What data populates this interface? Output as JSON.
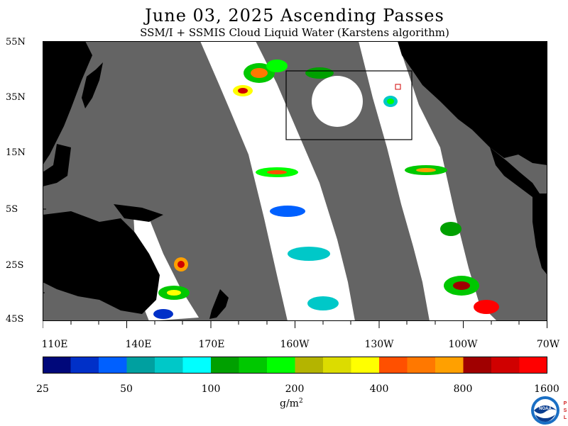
{
  "title": "June 03, 2025  Ascending Passes",
  "subtitle": "SSM/I + SSMIS Cloud Liquid Water (Karstens algorithm)",
  "map": {
    "lat_labels": [
      "55N",
      "35N",
      "15N",
      "5S",
      "25S",
      "45S"
    ],
    "lon_labels": [
      "110E",
      "140E",
      "170E",
      "160W",
      "130W",
      "100W",
      "70W"
    ],
    "colors": {
      "ocean_nodata": "#646464",
      "land": "#000000",
      "clear_sky": "#ffffff"
    }
  },
  "colorbar": {
    "colors": [
      "#00087a",
      "#0030c8",
      "#0060ff",
      "#00a0a0",
      "#00c8c8",
      "#00ffff",
      "#00a000",
      "#00c800",
      "#00ff00",
      "#b4b400",
      "#dcdc00",
      "#ffff00",
      "#ff5000",
      "#ff7800",
      "#ffa000",
      "#a00000",
      "#d00000",
      "#ff0000"
    ],
    "tick_labels": [
      "25",
      "50",
      "100",
      "200",
      "400",
      "800",
      "1600"
    ],
    "units_main": "g/m",
    "units_sup": "2"
  },
  "logo": {
    "text": "NOAA",
    "side_text": [
      "P",
      "S",
      "L"
    ],
    "colors": {
      "ring": "#1a6fc4",
      "inner": "#0a3d8f",
      "accent": "#ffffff",
      "psl": "#d02020"
    }
  }
}
